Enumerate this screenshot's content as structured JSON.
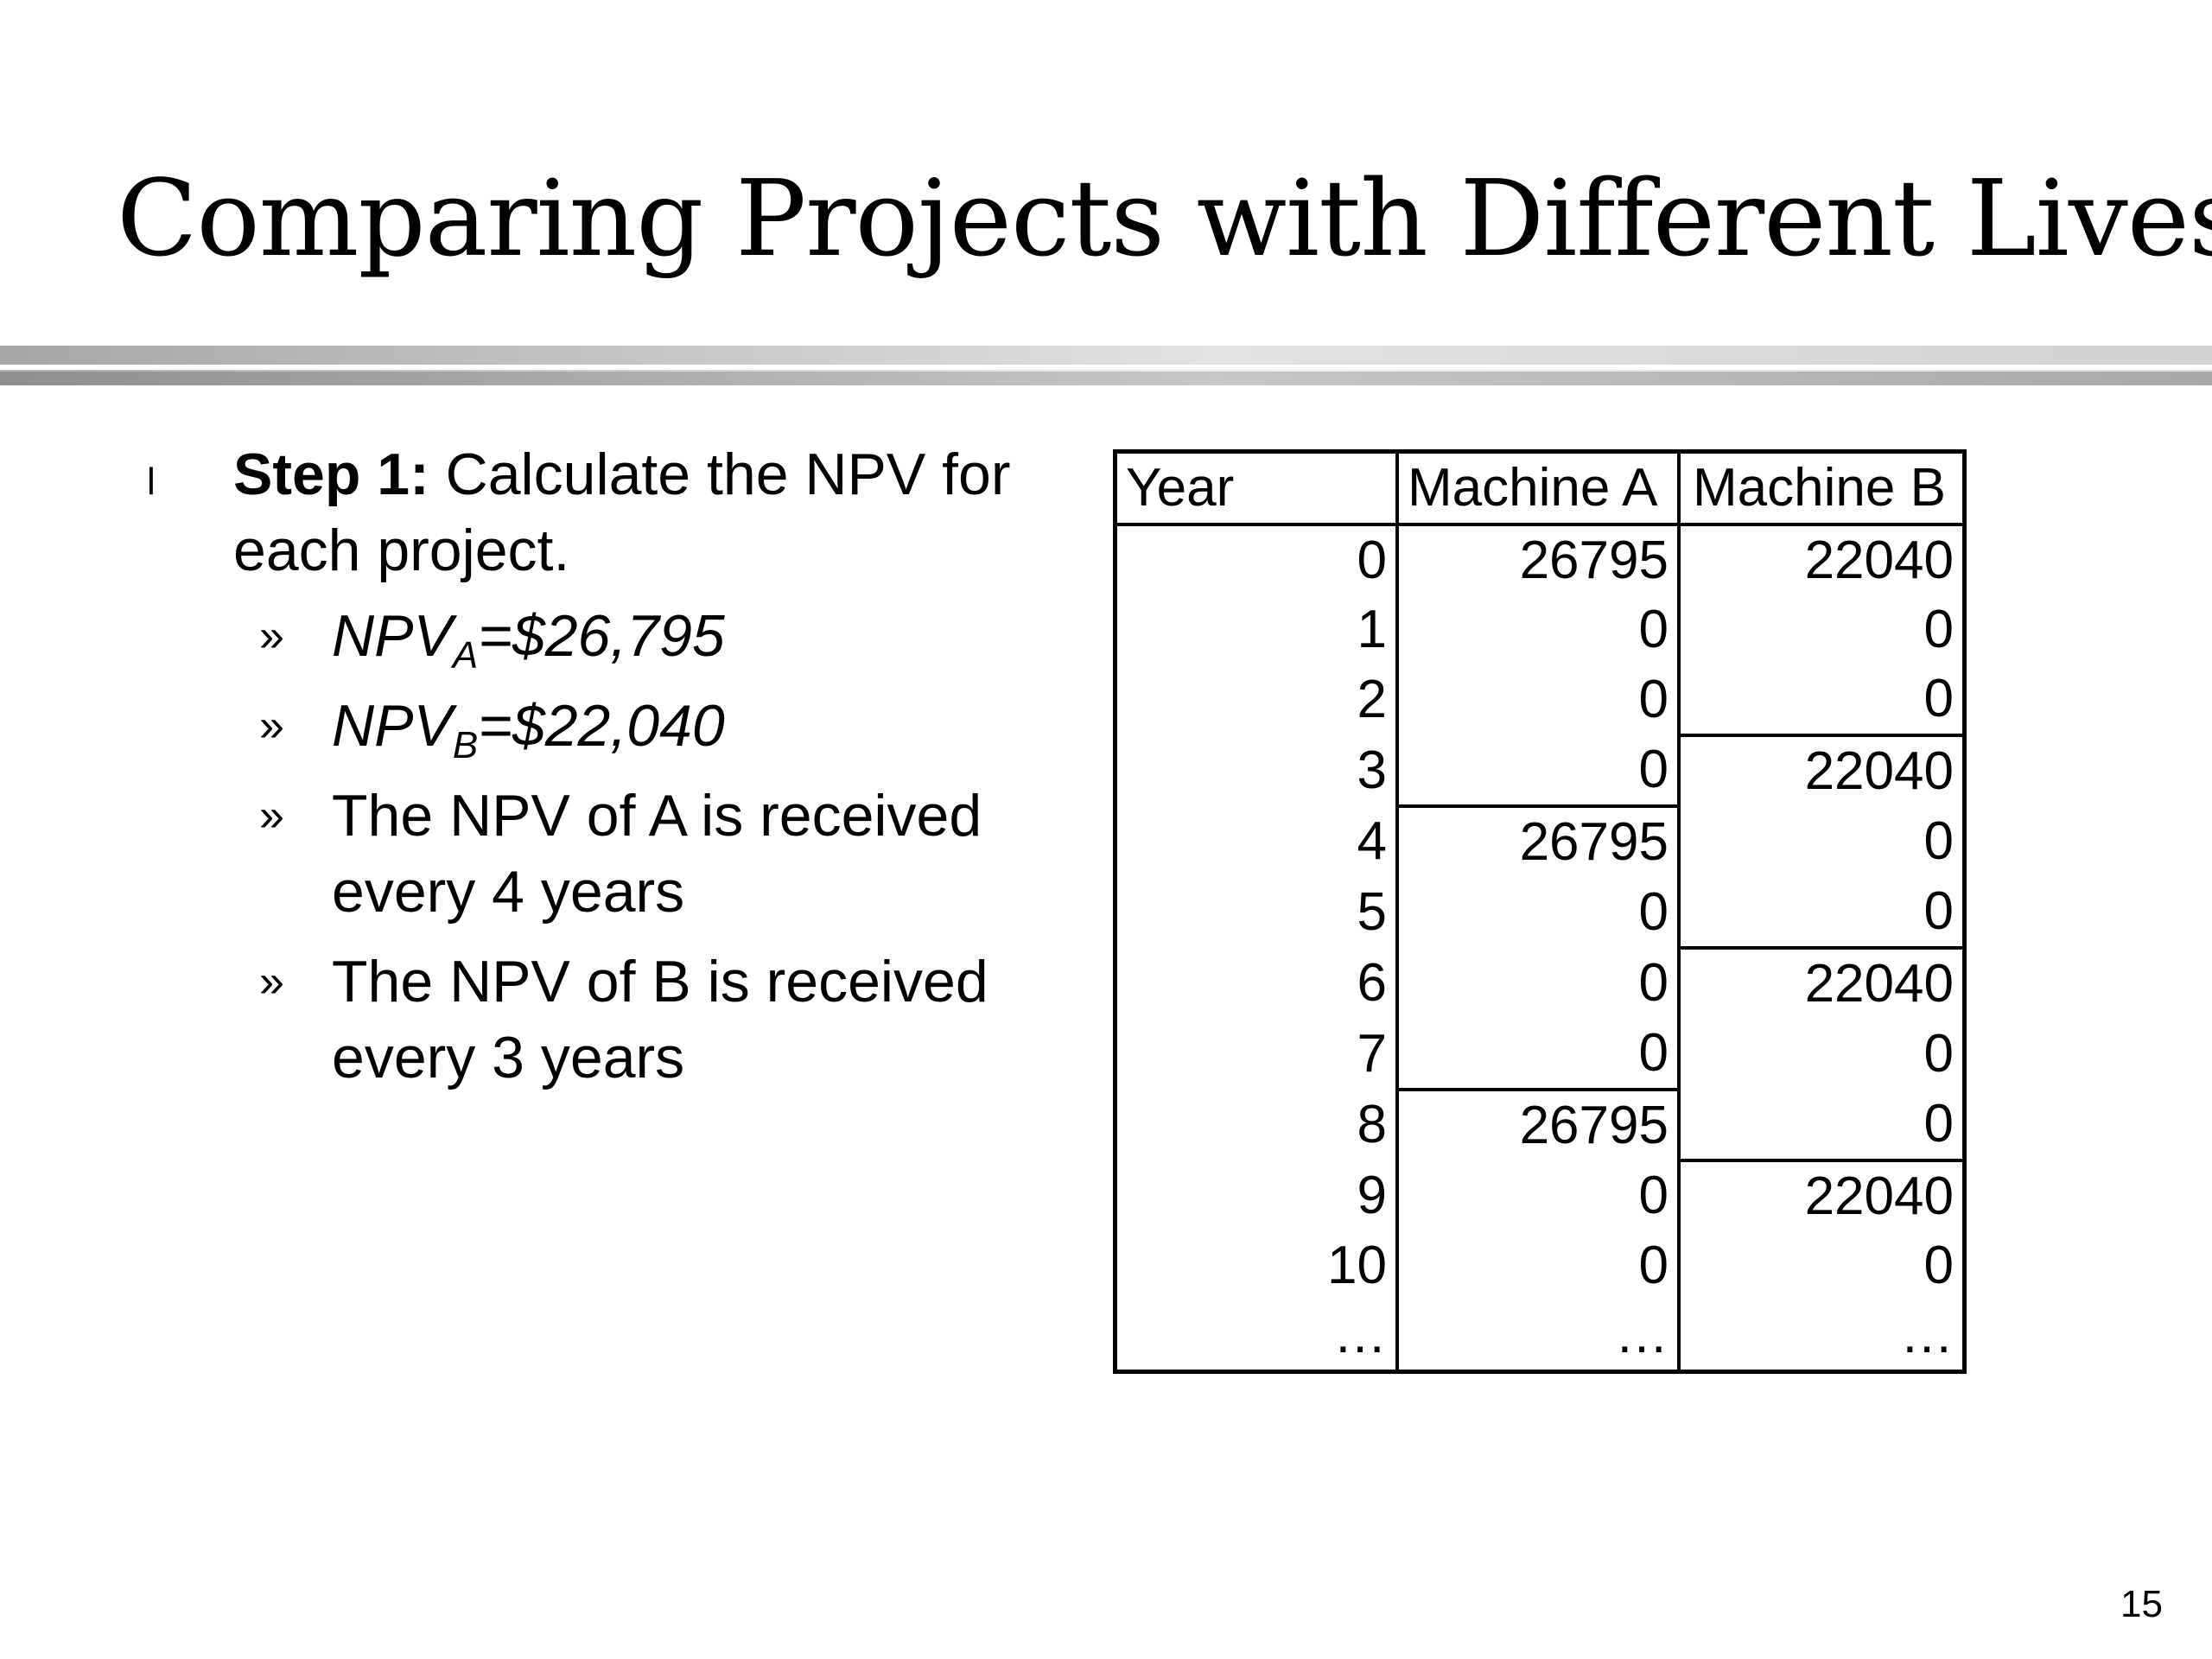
{
  "slide": {
    "title": "Comparing Projects with Different Lives",
    "page_number": "15",
    "bullet_symbol": "l"
  },
  "content": {
    "point": {
      "label": "Step 1:",
      "text": " Calculate the NPV for each project."
    },
    "sub_points": [
      {
        "prefix": "NPV",
        "subscript": "A",
        "suffix": "=$26,795",
        "italic": true
      },
      {
        "prefix": "NPV",
        "subscript": "B",
        "suffix": "=$22,040",
        "italic": true
      },
      {
        "text": "The NPV of A is received every 4 years",
        "italic": false
      },
      {
        "text": "The NPV of B is received every 3 years",
        "italic": false
      }
    ]
  },
  "table": {
    "headers": [
      "Year",
      "Machine A",
      "Machine B"
    ],
    "rows": [
      {
        "year": "0",
        "a": "26795",
        "b": "22040"
      },
      {
        "year": "1",
        "a": "0",
        "b": "0"
      },
      {
        "year": "2",
        "a": "0",
        "b": "0"
      },
      {
        "year": "3",
        "a": "0",
        "b": "22040"
      },
      {
        "year": "4",
        "a": "26795",
        "b": "0"
      },
      {
        "year": "5",
        "a": "0",
        "b": "0"
      },
      {
        "year": "6",
        "a": "0",
        "b": "22040"
      },
      {
        "year": "7",
        "a": "0",
        "b": "0"
      },
      {
        "year": "8",
        "a": "26795",
        "b": "0"
      },
      {
        "year": "9",
        "a": "0",
        "b": "22040"
      },
      {
        "year": "10",
        "a": "0",
        "b": "0"
      },
      {
        "year": "…",
        "a": "…",
        "b": "…"
      }
    ]
  }
}
